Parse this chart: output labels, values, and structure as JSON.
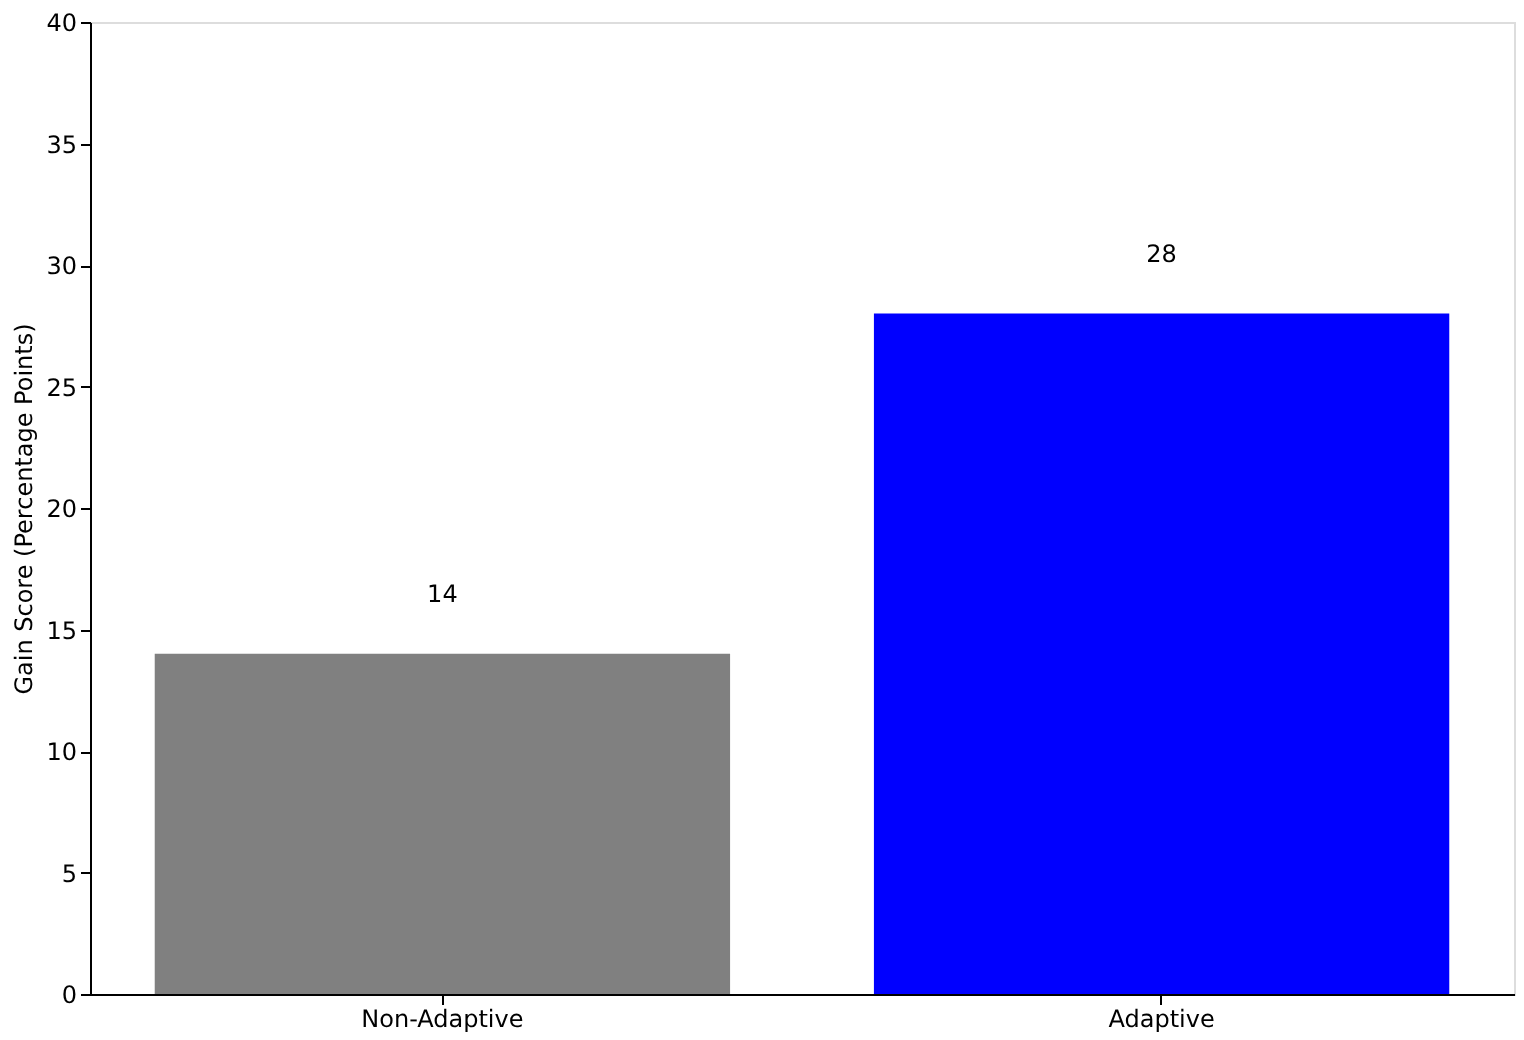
{
  "chart_data": {
    "type": "bar",
    "ylabel": "Gain Score (Percentage Points)",
    "categories": [
      "Non-Adaptive",
      "Adaptive"
    ],
    "values": [
      14,
      28
    ],
    "colors": [
      "#808080",
      "#0000ff"
    ],
    "ylim": [
      0,
      40
    ],
    "yticks": [
      0,
      5,
      10,
      15,
      20,
      25,
      30,
      35,
      40
    ],
    "data_labels": true,
    "grid": false
  }
}
